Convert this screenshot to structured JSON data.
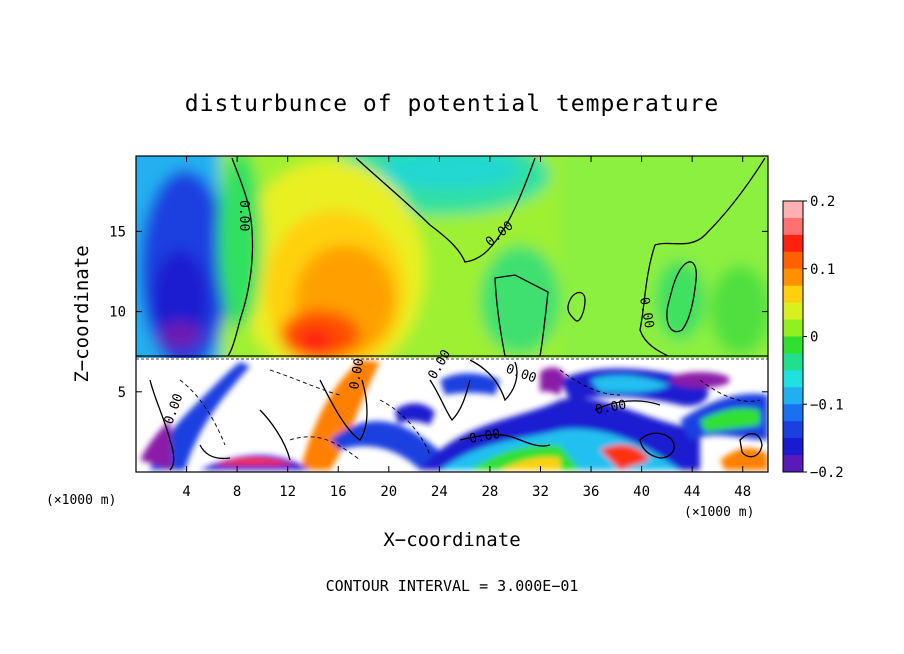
{
  "chart_data": {
    "type": "heatmap",
    "title": "disturbunce of potential temperature",
    "xlabel": "X−coordinate",
    "ylabel": "Z−coordinate",
    "x_unit": "(×1000 m)",
    "x_unit_right": "(×1000 m)",
    "x_ticks": [
      4,
      8,
      12,
      16,
      20,
      24,
      28,
      32,
      36,
      40,
      44,
      48
    ],
    "y_ticks": [
      5,
      10,
      15
    ],
    "xlim": [
      0,
      50
    ],
    "ylim": [
      0,
      19.7
    ],
    "contour_interval_text": "CONTOUR INTERVAL = 3.000E−01",
    "contour_labels": [
      "0.00",
      "0.00",
      "0.00",
      "0.00",
      "0.00",
      "0.00",
      "0.00",
      "0.00",
      "0.00"
    ],
    "colorbar": {
      "ticks": [
        "0.2",
        "0.1",
        "0",
        "−0.1",
        "−0.2"
      ],
      "tick_values": [
        0.2,
        0.1,
        0,
        -0.1,
        -0.2
      ],
      "range": [
        -0.2,
        0.2
      ]
    },
    "colors": {
      "neg_02": "#8a1aa8",
      "neg_015": "#1a1ad0",
      "neg_01": "#1fa0f0",
      "neg_005": "#20e0e0",
      "zero": "#30e030",
      "pos_005": "#d8f020",
      "pos_01": "#ff9000",
      "pos_015": "#ff2010",
      "pos_02": "#ffb0b0"
    }
  }
}
